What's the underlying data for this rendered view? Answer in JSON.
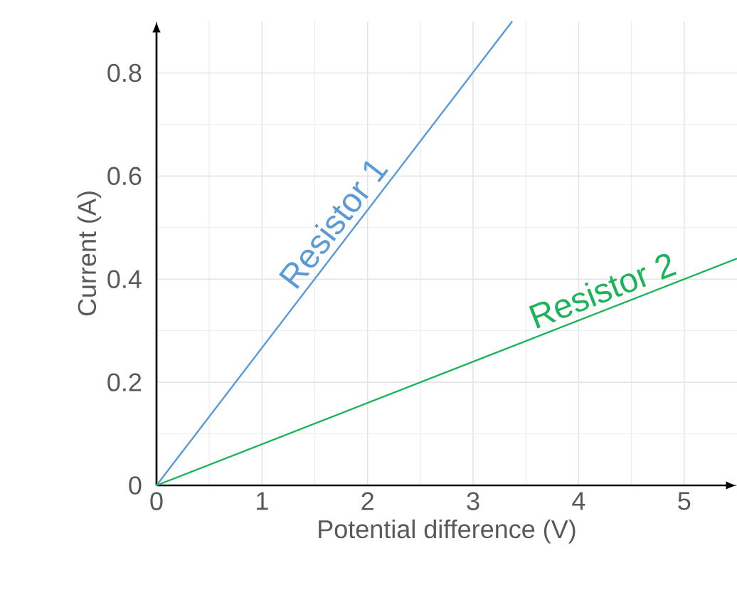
{
  "chart_data": {
    "type": "line",
    "xlabel": "Potential difference (V)",
    "ylabel": "Current (A)",
    "series": [
      {
        "name": "Resistor 1",
        "color": "#5b9bd5",
        "x": [
          0,
          3.37
        ],
        "values": [
          0,
          0.9
        ]
      },
      {
        "name": "Resistor 2",
        "color": "#1db35a",
        "x": [
          0,
          5.5
        ],
        "values": [
          0,
          0.44
        ]
      }
    ],
    "xlim": [
      0,
      5.5
    ],
    "ylim": [
      0,
      0.9
    ],
    "xticks": [
      0,
      1,
      2,
      3,
      4,
      5
    ],
    "yticks": [
      0,
      0.2,
      0.4,
      0.6,
      0.8
    ],
    "grid": true,
    "marker": "none",
    "line_style": "solid"
  }
}
